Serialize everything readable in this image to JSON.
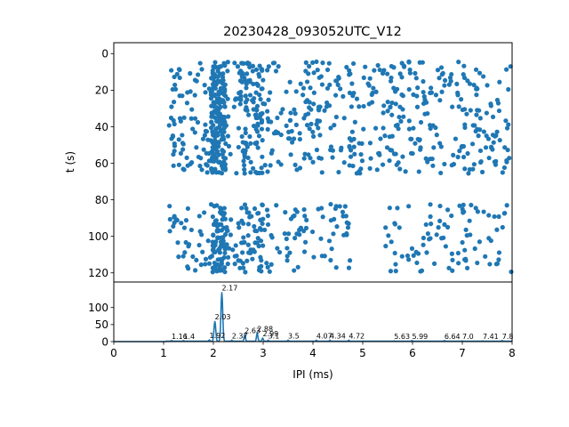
{
  "chart_data": [
    {
      "type": "scatter",
      "title": "20230428_093052UTC_V12",
      "xlabel": "",
      "ylabel": "t (s)",
      "xlim": [
        0,
        8
      ],
      "ylim": [
        125,
        -6
      ],
      "y_inverted": true,
      "yticks": [
        "0",
        "20",
        "40",
        "60",
        "80",
        "100",
        "120"
      ],
      "marker_color": "#1f77b4",
      "grid": false,
      "bands": [
        {
          "t_min": 0,
          "t_max": 68,
          "description": "dense rows of dots across IPI range ~1.1–8 ms, densest near 2.0–2.2 ms"
        },
        {
          "t_min": 82,
          "t_max": 121,
          "description": "second group of rows, denser at 1.1–4.7 ms and 5.5–8 ms"
        }
      ]
    },
    {
      "type": "line",
      "title": "",
      "xlabel": "IPI (ms)",
      "ylabel": "",
      "xlim": [
        0,
        8
      ],
      "ylim": [
        0,
        175
      ],
      "xticks": [
        "0",
        "1",
        "2",
        "3",
        "4",
        "5",
        "6",
        "7",
        "8"
      ],
      "yticks": [
        "0",
        "50",
        "100"
      ],
      "line_color": "#1f77b4",
      "grid": false,
      "peaks": [
        {
          "x": 2.17,
          "y": 145,
          "label": "2.17"
        },
        {
          "x": 2.03,
          "y": 60,
          "label": "2.03"
        },
        {
          "x": 2.63,
          "y": 20,
          "label": "2.63"
        },
        {
          "x": 2.88,
          "y": 25,
          "label": "2.88"
        },
        {
          "x": 2.99,
          "y": 10,
          "label": "2.99"
        },
        {
          "x": 1.16,
          "y": 3,
          "label": "1.16"
        },
        {
          "x": 1.4,
          "y": 3,
          "label": "1.4"
        },
        {
          "x": 1.92,
          "y": 5,
          "label": "1.92"
        },
        {
          "x": 2.37,
          "y": 4,
          "label": "2.37"
        },
        {
          "x": 3.1,
          "y": 4,
          "label": "3.1"
        },
        {
          "x": 3.5,
          "y": 4,
          "label": "3.5"
        },
        {
          "x": 4.07,
          "y": 4,
          "label": "4.07"
        },
        {
          "x": 4.34,
          "y": 4,
          "label": "4.34"
        },
        {
          "x": 4.72,
          "y": 4,
          "label": "4.72"
        },
        {
          "x": 5.63,
          "y": 2,
          "label": "5.63"
        },
        {
          "x": 5.99,
          "y": 3,
          "label": "5.99"
        },
        {
          "x": 6.64,
          "y": 3,
          "label": "6.64"
        },
        {
          "x": 7.0,
          "y": 2,
          "label": "7.0"
        },
        {
          "x": 7.41,
          "y": 2,
          "label": "7.41"
        },
        {
          "x": 7.8,
          "y": 3,
          "label": "7.8"
        }
      ]
    }
  ]
}
